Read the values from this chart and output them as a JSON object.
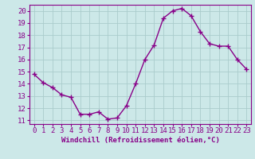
{
  "x": [
    0,
    1,
    2,
    3,
    4,
    5,
    6,
    7,
    8,
    9,
    10,
    11,
    12,
    13,
    14,
    15,
    16,
    17,
    18,
    19,
    20,
    21,
    22,
    23
  ],
  "y": [
    14.8,
    14.1,
    13.7,
    13.1,
    12.9,
    11.5,
    11.5,
    11.7,
    11.1,
    11.2,
    12.2,
    14.0,
    16.0,
    17.2,
    19.4,
    20.0,
    20.2,
    19.6,
    18.3,
    17.3,
    17.1,
    17.1,
    16.0,
    15.2
  ],
  "line_color": "#880088",
  "marker": "+",
  "marker_color": "#880088",
  "bg_color": "#cce8e8",
  "grid_color": "#aacccc",
  "axis_color": "#880088",
  "tick_color": "#880088",
  "xlabel": "Windchill (Refroidissement éolien,°C)",
  "xlabel_color": "#880088",
  "xlim": [
    -0.5,
    23.5
  ],
  "ylim": [
    10.7,
    20.5
  ],
  "yticks": [
    11,
    12,
    13,
    14,
    15,
    16,
    17,
    18,
    19,
    20
  ],
  "xticks": [
    0,
    1,
    2,
    3,
    4,
    5,
    6,
    7,
    8,
    9,
    10,
    11,
    12,
    13,
    14,
    15,
    16,
    17,
    18,
    19,
    20,
    21,
    22,
    23
  ],
  "linewidth": 1.0,
  "markersize": 4,
  "font_size": 6.5
}
